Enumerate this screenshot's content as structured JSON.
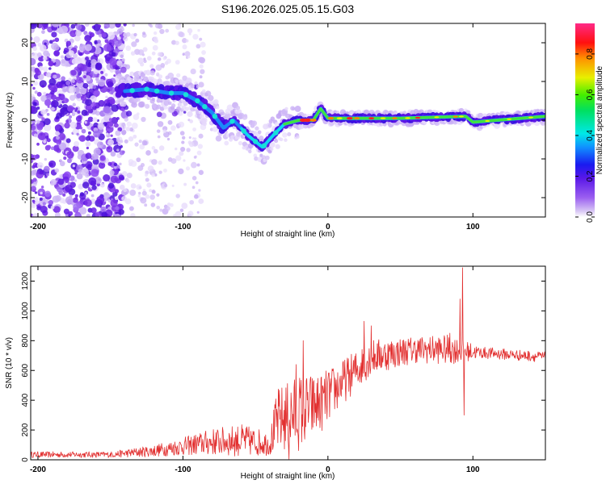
{
  "chart_data": [
    {
      "type": "heatmap",
      "title": "S196.2026.025.05.15.G03",
      "xlabel": "Height of straight line (km)",
      "ylabel": "Frequency (Hz)",
      "xlim": [
        -205,
        150
      ],
      "ylim": [
        -25,
        25
      ],
      "xticks": [
        -200,
        -100,
        0,
        100
      ],
      "xtick_labels": [
        "-200",
        "-100",
        "0",
        "100"
      ],
      "yticks": [
        -20,
        -10,
        0,
        10,
        20
      ],
      "ytick_labels": [
        "-20",
        "-10",
        "0",
        "10",
        "20"
      ],
      "colorbar": {
        "label": "Normalized spectral amplitude",
        "range": [
          0,
          0.95
        ],
        "ticks": [
          0.0,
          0.2,
          0.4,
          0.6,
          0.8
        ],
        "tick_labels": [
          "0.0",
          "0.2",
          "0.4",
          "0.6",
          "0.8"
        ],
        "colormap": "rainbow (purple-blue-cyan-green-yellow-red-magenta)"
      },
      "ridge": [
        {
          "x": -140,
          "y": 7.5
        },
        {
          "x": -125,
          "y": 8
        },
        {
          "x": -110,
          "y": 7
        },
        {
          "x": -100,
          "y": 7
        },
        {
          "x": -90,
          "y": 5
        },
        {
          "x": -80,
          "y": 2
        },
        {
          "x": -72,
          "y": -2
        },
        {
          "x": -65,
          "y": 0
        },
        {
          "x": -55,
          "y": -4
        },
        {
          "x": -45,
          "y": -7
        },
        {
          "x": -38,
          "y": -4
        },
        {
          "x": -30,
          "y": -1
        },
        {
          "x": -20,
          "y": 0
        },
        {
          "x": -10,
          "y": 0
        },
        {
          "x": -5,
          "y": 3
        },
        {
          "x": 0,
          "y": 0.5
        },
        {
          "x": 50,
          "y": 0.5
        },
        {
          "x": 95,
          "y": 1
        },
        {
          "x": 100,
          "y": -0.5
        },
        {
          "x": 150,
          "y": 1
        }
      ]
    },
    {
      "type": "line",
      "xlabel": "Height of straight line (km)",
      "ylabel": "SNR (10 * v/v)",
      "xlim": [
        -205,
        150
      ],
      "ylim": [
        0,
        1300
      ],
      "xticks": [
        -200,
        -100,
        0,
        100
      ],
      "xtick_labels": [
        "-200",
        "-100",
        "0",
        "100"
      ],
      "yticks": [
        0,
        200,
        400,
        600,
        800,
        1000,
        1200
      ],
      "ytick_labels": [
        "0",
        "200",
        "400",
        "600",
        "800",
        "1000",
        "1200"
      ],
      "line_color": "#e23030",
      "envelope": [
        {
          "x": -205,
          "base": 35,
          "amp": 20
        },
        {
          "x": -150,
          "base": 35,
          "amp": 20
        },
        {
          "x": -120,
          "base": 60,
          "amp": 40
        },
        {
          "x": -100,
          "base": 90,
          "amp": 60
        },
        {
          "x": -80,
          "base": 120,
          "amp": 90
        },
        {
          "x": -60,
          "base": 130,
          "amp": 110
        },
        {
          "x": -40,
          "base": 110,
          "amp": 80
        },
        {
          "x": -35,
          "base": 260,
          "amp": 220
        },
        {
          "x": -20,
          "base": 320,
          "amp": 260
        },
        {
          "x": -5,
          "base": 380,
          "amp": 200
        },
        {
          "x": 10,
          "base": 520,
          "amp": 150
        },
        {
          "x": 30,
          "base": 690,
          "amp": 120
        },
        {
          "x": 60,
          "base": 740,
          "amp": 90
        },
        {
          "x": 85,
          "base": 740,
          "amp": 100
        },
        {
          "x": 105,
          "base": 720,
          "amp": 40
        },
        {
          "x": 150,
          "base": 690,
          "amp": 35
        }
      ],
      "spikes": [
        {
          "x": 93,
          "y": 1290
        },
        {
          "x": 94,
          "y": 300
        },
        {
          "x": 91,
          "y": 1080
        },
        {
          "x": 84,
          "y": 850
        },
        {
          "x": 25,
          "y": 930
        },
        {
          "x": 30,
          "y": 900
        },
        {
          "x": -17,
          "y": 800
        },
        {
          "x": -22,
          "y": 640
        },
        {
          "x": -27,
          "y": 5
        }
      ]
    }
  ]
}
